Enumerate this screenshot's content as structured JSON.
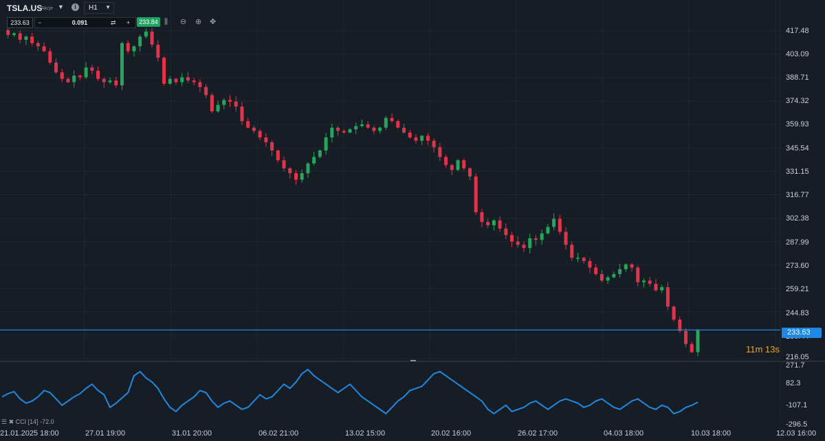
{
  "header": {
    "symbol": "TSLA.US",
    "symbol_type": "Akcje",
    "timeframe": "H1"
  },
  "trade": {
    "sell_price": "233.63",
    "quantity": "0.091",
    "buy_price": "233.84"
  },
  "toolbar_icons": [
    "candles-icon",
    "zoom-out-icon",
    "zoom-in-icon",
    "move-icon"
  ],
  "price_axis": {
    "labels": [
      "417.48",
      "403.09",
      "388.71",
      "374.32",
      "359.93",
      "345.54",
      "331.15",
      "316.77",
      "302.38",
      "287.99",
      "273.60",
      "259.21",
      "244.83",
      "230.44",
      "216.05"
    ],
    "current_price": "233.63",
    "countdown": "11m 13s"
  },
  "cci_axis": {
    "labels": [
      "271.7",
      "82.3",
      "-107.1",
      "-296.5"
    ],
    "legend": "CCI [14] -72.0"
  },
  "time_axis": {
    "labels": [
      "21.01.2025 18:00",
      "27.01 19:00",
      "31.01 20:00",
      "06.02 21:00",
      "13.02 15:00",
      "20.02 16:00",
      "26.02 17:00",
      "04.03 18:00",
      "10.03 18:00",
      "12.03 16:00"
    ]
  },
  "colors": {
    "background": "#161d24",
    "bull": "#26a65b",
    "bear": "#e0344b",
    "price_line": "#1e88e5",
    "cci_line": "#1e88e5",
    "countdown": "#f5a623"
  },
  "chart_data": {
    "type": "candlestick",
    "timeframe": "H1",
    "ylim": [
      216.05,
      417.48
    ],
    "close_path": [
      418,
      415,
      416,
      412,
      414,
      410,
      408,
      405,
      398,
      392,
      388,
      386,
      390,
      389,
      395,
      393,
      388,
      386,
      387,
      384,
      410,
      405,
      408,
      414,
      417,
      409,
      401,
      385,
      388,
      386,
      389,
      387,
      386,
      383,
      378,
      368,
      372,
      375,
      374,
      371,
      362,
      358,
      356,
      352,
      349,
      344,
      338,
      333,
      330,
      326,
      330,
      336,
      340,
      344,
      352,
      358,
      356,
      355,
      357,
      359,
      360,
      358,
      356,
      358,
      364,
      362,
      358,
      355,
      352,
      350,
      353,
      350,
      346,
      340,
      335,
      332,
      338,
      333,
      328,
      306,
      300,
      298,
      301,
      296,
      292,
      288,
      286,
      284,
      290,
      289,
      293,
      297,
      302,
      294,
      286,
      278,
      278,
      276,
      272,
      268,
      264,
      266,
      268,
      271,
      274,
      272,
      263,
      264,
      262,
      258,
      260,
      248,
      240,
      233,
      225,
      220,
      233.63
    ],
    "cci_path": [
      -20,
      10,
      30,
      -40,
      -80,
      -60,
      -20,
      40,
      20,
      -40,
      -100,
      -60,
      -20,
      10,
      60,
      100,
      40,
      0,
      -120,
      -80,
      -30,
      20,
      180,
      220,
      160,
      120,
      60,
      -40,
      -120,
      -160,
      -100,
      -60,
      -20,
      40,
      20,
      -60,
      -120,
      -80,
      -60,
      -100,
      -140,
      -120,
      -60,
      0,
      -40,
      -20,
      40,
      100,
      60,
      120,
      200,
      240,
      180,
      140,
      100,
      60,
      20,
      60,
      100,
      40,
      -20,
      -60,
      -100,
      -140,
      -180,
      -120,
      -60,
      -20,
      40,
      60,
      80,
      140,
      200,
      220,
      180,
      140,
      100,
      60,
      20,
      -20,
      -60,
      -140,
      -180,
      -140,
      -100,
      -160,
      -140,
      -120,
      -80,
      -60,
      -100,
      -140,
      -100,
      -60,
      -40,
      -60,
      -80,
      -120,
      -100,
      -60,
      -40,
      -80,
      -120,
      -140,
      -100,
      -60,
      -40,
      -80,
      -120,
      -140,
      -100,
      -120,
      -180,
      -160,
      -120,
      -100,
      -72
    ]
  }
}
